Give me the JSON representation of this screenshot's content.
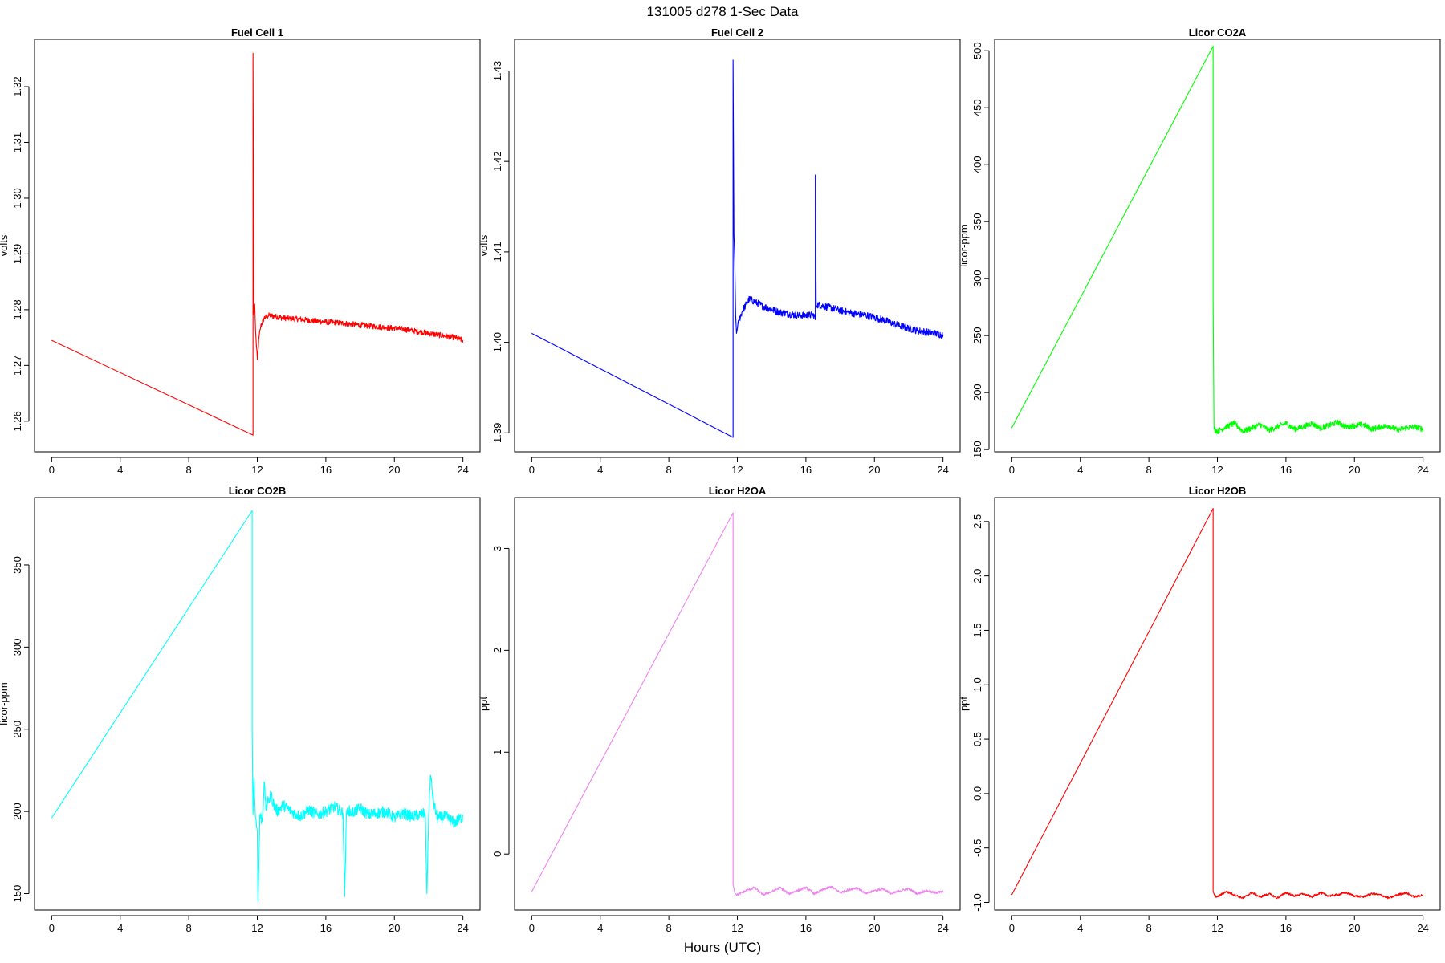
{
  "figure": {
    "title": "131005   d278   1-Sec Data",
    "xlabel": "Hours (UTC)"
  },
  "chart_data": [
    {
      "type": "line",
      "title": "Fuel Cell 1",
      "ylabel": "volts",
      "color": "#ff0000",
      "xlim": [
        -1,
        25
      ],
      "ylim": [
        1.2545,
        1.3285
      ],
      "xticks": [
        0,
        4,
        8,
        12,
        16,
        20,
        24
      ],
      "yticks": [
        1.26,
        1.27,
        1.28,
        1.29,
        1.3,
        1.31,
        1.32
      ],
      "ytick_decimals": 2,
      "series": [
        {
          "x": [
            0,
            11.75,
            11.75,
            11.8,
            11.85,
            11.9,
            12.0,
            12.1,
            12.2,
            12.4,
            12.7,
            13.5,
            14.5,
            15.5,
            16.5,
            17.5,
            18.5,
            19.5,
            20.5,
            21.5,
            22.5,
            23.5,
            24.0
          ],
          "y": [
            1.2745,
            1.2575,
            1.326,
            1.279,
            1.281,
            1.276,
            1.271,
            1.275,
            1.277,
            1.2785,
            1.279,
            1.2785,
            1.2783,
            1.2779,
            1.2777,
            1.2774,
            1.2771,
            1.2768,
            1.2765,
            1.276,
            1.2755,
            1.275,
            1.2745
          ],
          "noise": 0.0005,
          "noise_from": 11.9
        }
      ]
    },
    {
      "type": "line",
      "title": "Fuel Cell 2",
      "ylabel": "volts",
      "color": "#0000ff",
      "xlim": [
        -1,
        25
      ],
      "ylim": [
        1.3879,
        1.4335
      ],
      "xticks": [
        0,
        4,
        8,
        12,
        16,
        20,
        24
      ],
      "yticks": [
        1.39,
        1.4,
        1.41,
        1.42,
        1.43
      ],
      "ytick_decimals": 2,
      "series": [
        {
          "x": [
            0,
            11.75,
            11.75,
            11.8,
            11.85,
            11.9,
            11.95,
            12.0,
            12.1,
            12.3,
            12.7,
            13.5,
            14.5,
            15.5,
            16.5,
            16.55,
            16.55,
            16.6,
            17.5,
            18.5,
            19.5,
            20.5,
            21.5,
            22.5,
            23.5,
            24.0
          ],
          "y": [
            1.401,
            1.3895,
            1.4312,
            1.412,
            1.409,
            1.403,
            1.401,
            1.4015,
            1.4025,
            1.4035,
            1.4048,
            1.404,
            1.4033,
            1.403,
            1.403,
            1.4025,
            1.4185,
            1.4042,
            1.4038,
            1.4033,
            1.403,
            1.4025,
            1.4018,
            1.4013,
            1.401,
            1.4008
          ],
          "noise": 0.0004,
          "noise_from": 12.0
        }
      ]
    },
    {
      "type": "line",
      "title": "Licor CO2A",
      "ylabel": "licor-ppm",
      "color": "#00ff00",
      "xlim": [
        -1,
        25
      ],
      "ylim": [
        148,
        510
      ],
      "xticks": [
        0,
        4,
        8,
        12,
        16,
        20,
        24
      ],
      "yticks": [
        150,
        200,
        250,
        300,
        350,
        400,
        450,
        500
      ],
      "ytick_decimals": 0,
      "series": [
        {
          "x": [
            0,
            11.75,
            11.75,
            11.8,
            12.0,
            12.5,
            13.0,
            13.5,
            14.0,
            14.5,
            15.0,
            15.5,
            16.0,
            16.5,
            17.0,
            17.5,
            18.0,
            18.5,
            19.0,
            19.5,
            20.0,
            20.5,
            21.0,
            21.5,
            22.0,
            22.5,
            23.0,
            23.5,
            24.0
          ],
          "y": [
            169,
            504,
            280,
            168,
            166,
            170,
            173,
            166,
            169,
            172,
            167,
            170,
            173,
            168,
            170,
            173,
            169,
            171,
            174,
            170,
            171,
            172,
            168,
            170,
            171,
            167,
            169,
            170,
            168
          ],
          "noise": 2.5,
          "noise_from": 11.8
        }
      ]
    },
    {
      "type": "line",
      "title": "Licor CO2B",
      "ylabel": "licor-ppm",
      "color": "#00ffff",
      "xlim": [
        -1,
        25
      ],
      "ylim": [
        140,
        391
      ],
      "xticks": [
        0,
        4,
        8,
        12,
        16,
        20,
        24
      ],
      "yticks": [
        150,
        200,
        250,
        300,
        350
      ],
      "ytick_decimals": 0,
      "series": [
        {
          "x": [
            0,
            11.7,
            11.7,
            11.75,
            11.8,
            11.9,
            12.0,
            12.05,
            12.15,
            12.3,
            12.4,
            12.5,
            12.6,
            12.8,
            13.0,
            13.2,
            13.5,
            14.0,
            14.5,
            15.0,
            15.5,
            16.0,
            16.5,
            17.0,
            17.1,
            17.2,
            17.3,
            17.5,
            18.0,
            18.5,
            19.0,
            19.5,
            20.0,
            20.5,
            21.0,
            21.5,
            21.8,
            21.9,
            22.0,
            22.1,
            22.3,
            22.5,
            23.0,
            23.5,
            24.0
          ],
          "y": [
            196,
            383,
            250,
            198,
            220,
            196,
            188,
            145,
            198,
            194,
            218,
            202,
            205,
            210,
            203,
            200,
            204,
            200,
            197,
            201,
            198,
            200,
            203,
            199,
            148,
            198,
            201,
            199,
            202,
            198,
            199,
            200,
            196,
            199,
            197,
            198,
            199,
            150,
            197,
            222,
            205,
            196,
            197,
            193,
            197
          ],
          "noise": 3.5,
          "noise_from": 11.8
        }
      ]
    },
    {
      "type": "line",
      "title": "Licor H2OA",
      "ylabel": "ppt",
      "color": "#ee82ee",
      "xlim": [
        -1,
        25
      ],
      "ylim": [
        -0.55,
        3.5
      ],
      "xticks": [
        0,
        4,
        8,
        12,
        16,
        20,
        24
      ],
      "yticks": [
        0,
        1,
        2,
        3
      ],
      "ytick_decimals": 0,
      "series": [
        {
          "x": [
            0,
            11.75,
            11.75,
            11.85,
            12.0,
            12.5,
            13.0,
            13.5,
            14.0,
            14.5,
            15.0,
            15.5,
            16.0,
            16.5,
            17.0,
            17.5,
            18.0,
            18.5,
            19.0,
            19.5,
            20.0,
            20.5,
            21.0,
            21.5,
            22.0,
            22.5,
            23.0,
            23.5,
            24.0
          ],
          "y": [
            -0.37,
            3.35,
            -0.3,
            -0.38,
            -0.4,
            -0.36,
            -0.33,
            -0.4,
            -0.37,
            -0.33,
            -0.39,
            -0.36,
            -0.33,
            -0.39,
            -0.35,
            -0.32,
            -0.38,
            -0.35,
            -0.33,
            -0.39,
            -0.36,
            -0.34,
            -0.39,
            -0.36,
            -0.34,
            -0.39,
            -0.36,
            -0.38,
            -0.37
          ],
          "noise": 0.012,
          "noise_from": 11.85
        }
      ]
    },
    {
      "type": "line",
      "title": "Licor H2OB",
      "ylabel": "ppt",
      "color": "#ff0000",
      "xlim": [
        -1,
        25
      ],
      "ylim": [
        -1.07,
        2.72
      ],
      "xticks": [
        0,
        4,
        8,
        12,
        16,
        20,
        24
      ],
      "yticks": [
        -1.0,
        -0.5,
        0.0,
        0.5,
        1.0,
        1.5,
        2.0,
        2.5
      ],
      "ytick_decimals": 1,
      "series": [
        {
          "x": [
            0,
            11.75,
            11.75,
            11.85,
            12.0,
            12.5,
            13.0,
            13.5,
            14.0,
            14.5,
            15.0,
            15.5,
            16.0,
            16.5,
            17.0,
            17.5,
            18.0,
            18.5,
            19.0,
            19.5,
            20.0,
            20.5,
            21.0,
            21.5,
            22.0,
            22.5,
            23.0,
            23.5,
            24.0
          ],
          "y": [
            -0.93,
            2.62,
            -0.9,
            -0.94,
            -0.95,
            -0.9,
            -0.93,
            -0.96,
            -0.91,
            -0.95,
            -0.92,
            -0.96,
            -0.91,
            -0.94,
            -0.92,
            -0.95,
            -0.91,
            -0.94,
            -0.93,
            -0.91,
            -0.94,
            -0.95,
            -0.92,
            -0.93,
            -0.96,
            -0.93,
            -0.91,
            -0.95,
            -0.93
          ],
          "noise": 0.01,
          "noise_from": 11.85
        }
      ]
    }
  ]
}
